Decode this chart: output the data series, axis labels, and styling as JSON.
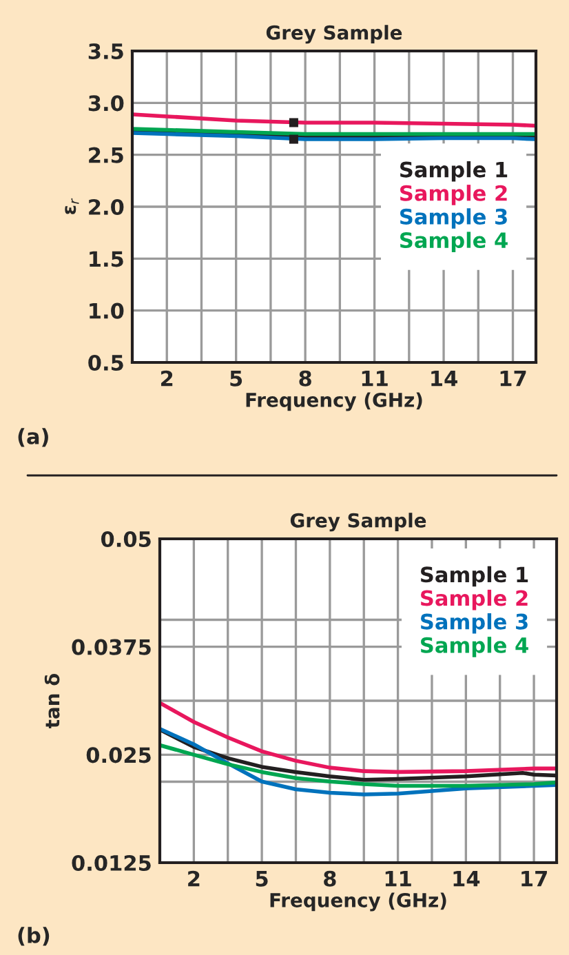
{
  "chart_data": [
    {
      "type": "line",
      "title": "Grey Sample",
      "xlabel": "Frequency (GHz)",
      "ylabel": "ε$_{r}$",
      "annotations": [
        "(a)"
      ],
      "xlim": [
        0.5,
        18
      ],
      "xticks": [
        {
          "value": 2,
          "label": "2"
        },
        {
          "value": 3.5,
          "label": null
        },
        {
          "value": 5,
          "label": "5"
        },
        {
          "value": 6.5,
          "label": null
        },
        {
          "value": 8,
          "label": "8"
        },
        {
          "value": 9.5,
          "label": null
        },
        {
          "value": 11,
          "label": "11"
        },
        {
          "value": 12.5,
          "label": null
        },
        {
          "value": 14,
          "label": "14"
        },
        {
          "value": 15.5,
          "label": null
        },
        {
          "value": 17,
          "label": "17"
        }
      ],
      "ylim": [
        0.5,
        3.5
      ],
      "yticks": [
        {
          "value": 0.5,
          "label": "0.5"
        },
        {
          "value": 1.0,
          "label": "1.0"
        },
        {
          "value": 1.5,
          "label": "1.5"
        },
        {
          "value": 2.0,
          "label": "2.0"
        },
        {
          "value": 2.5,
          "label": "2.5"
        },
        {
          "value": 3.0,
          "label": "3.0"
        },
        {
          "value": 3.5,
          "label": "3.5"
        }
      ],
      "grid": true,
      "legend": "right",
      "series": [
        {
          "name": "Sample 1",
          "color": "#231f20",
          "x": [
            0.5,
            2,
            5,
            8,
            11,
            14,
            17,
            18
          ],
          "values": [
            2.72,
            2.71,
            2.7,
            2.68,
            2.68,
            2.68,
            2.68,
            2.68
          ]
        },
        {
          "name": "Sample 2",
          "color": "#e8175d",
          "x": [
            0.5,
            2,
            5,
            8,
            11,
            14,
            17,
            18
          ],
          "values": [
            2.89,
            2.87,
            2.83,
            2.81,
            2.81,
            2.8,
            2.79,
            2.78
          ]
        },
        {
          "name": "Sample 3",
          "color": "#0072bc",
          "x": [
            0.5,
            2,
            5,
            8,
            11,
            14,
            17,
            18
          ],
          "values": [
            2.71,
            2.7,
            2.68,
            2.65,
            2.65,
            2.66,
            2.66,
            2.65
          ]
        },
        {
          "name": "Sample 4",
          "color": "#00a651",
          "x": [
            0.5,
            2,
            5,
            8,
            11,
            14,
            17,
            18
          ],
          "values": [
            2.75,
            2.74,
            2.72,
            2.7,
            2.7,
            2.7,
            2.7,
            2.7
          ]
        },
        {
          "type": "scatter",
          "marker": "square",
          "color": "#231f20",
          "x": [
            7.5,
            7.5
          ],
          "values": [
            2.81,
            2.65
          ]
        }
      ]
    },
    {
      "type": "line",
      "title": "Grey Sample",
      "xlabel": "Frequency (GHz)",
      "ylabel": "tan δ",
      "annotations": [
        "(b)"
      ],
      "xlim": [
        0.5,
        18
      ],
      "xticks": [
        {
          "value": 2,
          "label": "2"
        },
        {
          "value": 3.5,
          "label": null
        },
        {
          "value": 5,
          "label": "5"
        },
        {
          "value": 6.5,
          "label": null
        },
        {
          "value": 8,
          "label": "8"
        },
        {
          "value": 9.5,
          "label": null
        },
        {
          "value": 11,
          "label": "11"
        },
        {
          "value": 12.5,
          "label": null
        },
        {
          "value": 14,
          "label": "14"
        },
        {
          "value": 15.5,
          "label": null
        },
        {
          "value": 17,
          "label": "17"
        }
      ],
      "ylim": [
        0.0125,
        0.05
      ],
      "yticks": [
        {
          "value": 0.0125,
          "label": "0.0125"
        },
        {
          "value": 0.021875,
          "label": null
        },
        {
          "value": 0.025,
          "label": "0.025"
        },
        {
          "value": 0.03125,
          "label": null
        },
        {
          "value": 0.0375,
          "label": "0.0375"
        },
        {
          "value": 0.040625,
          "label": null
        },
        {
          "value": 0.05,
          "label": "0.05"
        }
      ],
      "grid": true,
      "legend": "top right",
      "series": [
        {
          "name": "Sample 1",
          "color": "#231f20",
          "x": [
            0.5,
            2,
            3.5,
            5,
            6.5,
            8,
            9.5,
            11,
            14,
            16.5,
            17,
            18
          ],
          "values": [
            0.0279,
            0.0259,
            0.0246,
            0.0236,
            0.023,
            0.0225,
            0.0221,
            0.0222,
            0.0225,
            0.0229,
            0.0227,
            0.0226
          ]
        },
        {
          "name": "Sample 2",
          "color": "#e8175d",
          "x": [
            0.5,
            2,
            3.5,
            5,
            6.5,
            8,
            9.5,
            11,
            14,
            17,
            18
          ],
          "values": [
            0.031,
            0.0288,
            0.027,
            0.0254,
            0.0243,
            0.0235,
            0.0231,
            0.023,
            0.0231,
            0.0234,
            0.0234
          ]
        },
        {
          "name": "Sample 3",
          "color": "#0072bc",
          "x": [
            0.5,
            2,
            3.5,
            5,
            6.5,
            8,
            9.5,
            11,
            12.5,
            14,
            17,
            18
          ],
          "values": [
            0.028,
            0.0262,
            0.024,
            0.0219,
            0.021,
            0.0206,
            0.0204,
            0.0205,
            0.0208,
            0.0211,
            0.0214,
            0.0215
          ]
        },
        {
          "name": "Sample 4",
          "color": "#00a651",
          "x": [
            0.5,
            2,
            3.5,
            5,
            6.5,
            8,
            9.5,
            11,
            14,
            17,
            18
          ],
          "values": [
            0.0261,
            0.025,
            0.0239,
            0.023,
            0.0223,
            0.0219,
            0.0216,
            0.0214,
            0.0214,
            0.0216,
            0.0218
          ]
        }
      ]
    }
  ]
}
